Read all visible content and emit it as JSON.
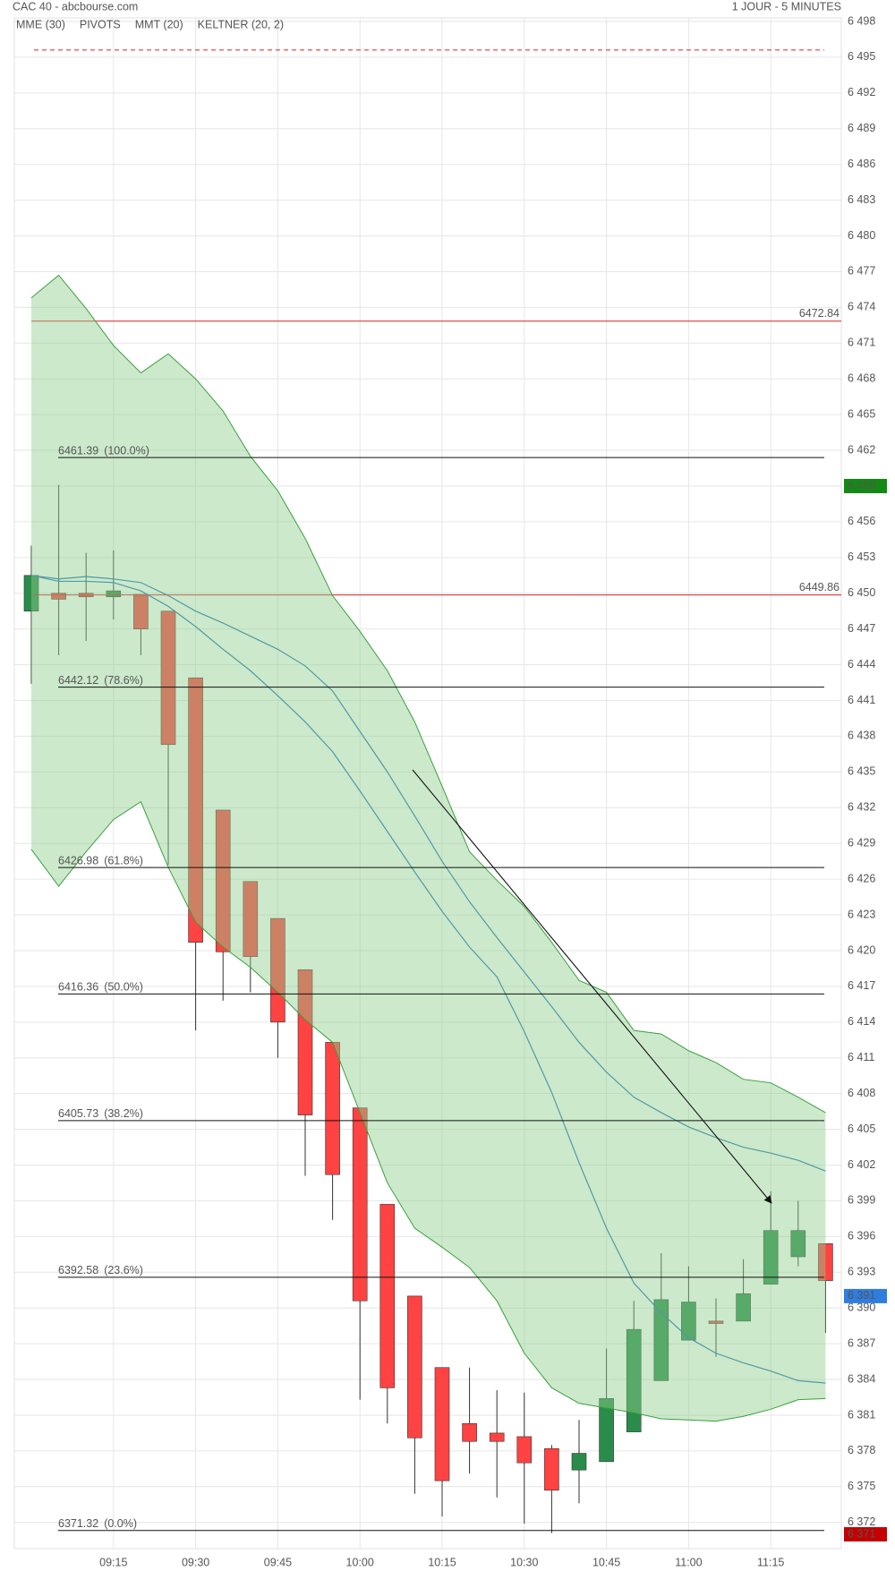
{
  "chart_data": {
    "type": "candlestick",
    "title": "CAC 40 - abcbourse.com",
    "subtitle": "1 JOUR - 5 MINUTES",
    "categories": [
      null,
      null,
      null,
      "09:15",
      null,
      null,
      "09:30",
      null,
      null,
      "09:45",
      null,
      null,
      "10:00",
      null,
      null,
      "10:15",
      null,
      null,
      "10:30",
      null,
      null,
      "10:45",
      null,
      null,
      "11:00",
      null,
      null,
      "11:15",
      null,
      null
    ],
    "open": [
      6448.5,
      6450.0,
      6450.0,
      6449.7,
      6449.9,
      6448.5,
      6442.9,
      6431.8,
      6425.8,
      6422.7,
      6418.4,
      6412.3,
      6406.8,
      6398.7,
      6391.0,
      6385.0,
      6380.3,
      6379.5,
      6379.2,
      6378.2,
      6376.4,
      6377.1,
      6379.6,
      6383.9,
      6387.3,
      6388.9,
      6388.9,
      6392.0,
      6394.3,
      6395.4
    ],
    "high": [
      6454.0,
      6459.1,
      6453.4,
      6453.6,
      6449.9,
      6448.5,
      6442.9,
      6431.8,
      6425.8,
      6422.7,
      6418.4,
      6412.3,
      6406.8,
      6398.7,
      6391.0,
      6385.0,
      6385.0,
      6383.1,
      6382.9,
      6378.5,
      6380.6,
      6386.6,
      6390.6,
      6394.6,
      6393.5,
      6390.8,
      6394.1,
      6399.8,
      6399.0,
      6395.4
    ],
    "low": [
      6442.4,
      6444.8,
      6446.0,
      6447.8,
      6444.8,
      6427.2,
      6413.3,
      6415.8,
      6416.5,
      6411.0,
      6401.1,
      6397.4,
      6382.3,
      6380.3,
      6374.4,
      6372.5,
      6376.1,
      6374.1,
      6371.9,
      6371.1,
      6373.6,
      6377.1,
      6379.6,
      6383.9,
      6387.3,
      6385.9,
      6388.9,
      6392.0,
      6393.5,
      6387.9
    ],
    "close": [
      6451.5,
      6449.5,
      6449.7,
      6450.2,
      6447.0,
      6437.3,
      6420.7,
      6419.9,
      6419.5,
      6414.0,
      6406.2,
      6401.2,
      6390.6,
      6383.3,
      6379.1,
      6375.5,
      6378.8,
      6378.8,
      6377.0,
      6374.7,
      6377.8,
      6382.4,
      6388.2,
      6390.7,
      6390.5,
      6388.7,
      6391.2,
      6396.5,
      6396.5,
      6392.3
    ],
    "up_color": "#2a8c4a",
    "down_color": "#ff4242",
    "ylim": [
      6369.8,
      6498.3
    ],
    "yticks": [
      {
        "value": 6372,
        "label": "6 372"
      },
      {
        "value": 6375,
        "label": "6 375"
      },
      {
        "value": 6378,
        "label": "6 378"
      },
      {
        "value": 6381,
        "label": "6 381"
      },
      {
        "value": 6384,
        "label": "6 384"
      },
      {
        "value": 6387,
        "label": "6 387"
      },
      {
        "value": 6390,
        "label": "6 390"
      },
      {
        "value": 6393,
        "label": "6 393"
      },
      {
        "value": 6396,
        "label": "6 396"
      },
      {
        "value": 6399,
        "label": "6 399"
      },
      {
        "value": 6402,
        "label": "6 402"
      },
      {
        "value": 6405,
        "label": "6 405"
      },
      {
        "value": 6408,
        "label": "6 408"
      },
      {
        "value": 6411,
        "label": "6 411"
      },
      {
        "value": 6414,
        "label": "6 414"
      },
      {
        "value": 6417,
        "label": "6 417"
      },
      {
        "value": 6420,
        "label": "6 420"
      },
      {
        "value": 6423,
        "label": "6 423"
      },
      {
        "value": 6426,
        "label": "6 426"
      },
      {
        "value": 6429,
        "label": "6 429"
      },
      {
        "value": 6432,
        "label": "6 432"
      },
      {
        "value": 6435,
        "label": "6 435"
      },
      {
        "value": 6438,
        "label": "6 438"
      },
      {
        "value": 6441,
        "label": "6 441"
      },
      {
        "value": 6444,
        "label": "6 444"
      },
      {
        "value": 6447,
        "label": "6 447"
      },
      {
        "value": 6450,
        "label": "6 450"
      },
      {
        "value": 6453,
        "label": "6 453"
      },
      {
        "value": 6456,
        "label": "6 456"
      },
      {
        "value": 6459,
        "label": "6 459"
      },
      {
        "value": 6462,
        "label": "6 462"
      },
      {
        "value": 6465,
        "label": "6 465"
      },
      {
        "value": 6468,
        "label": "6 468"
      },
      {
        "value": 6471,
        "label": "6 471"
      },
      {
        "value": 6474,
        "label": "6 474"
      },
      {
        "value": 6477,
        "label": "6 477"
      },
      {
        "value": 6480,
        "label": "6 480"
      },
      {
        "value": 6483,
        "label": "6 483"
      },
      {
        "value": 6486,
        "label": "6 486"
      },
      {
        "value": 6489,
        "label": "6 489"
      },
      {
        "value": 6492,
        "label": "6 492"
      },
      {
        "value": 6495,
        "label": "6 495"
      },
      {
        "value": 6498,
        "label": "6 498"
      }
    ],
    "grid": true,
    "series": [
      {
        "name": "MME (30)",
        "color": "#1f6fb5",
        "values": [
          6451.5,
          6451.2,
          6451.4,
          6451.2,
          6450.9,
          6449.8,
          6448.5,
          6447.5,
          6446.4,
          6445.3,
          6443.9,
          6441.8,
          6438.4,
          6435.0,
          6431.3,
          6427.5,
          6424.1,
          6421.1,
          6418.2,
          6415.3,
          6412.3,
          6409.8,
          6407.7,
          6406.4,
          6405.2,
          6404.3,
          6403.5,
          6403.0,
          6402.4,
          6401.5
        ]
      },
      {
        "name": "PIVOTS",
        "color": "#666666",
        "line_color": "#e02020",
        "levels": [
          6472.84,
          6449.86
        ],
        "dashed_level": 6495.6
      },
      {
        "name": "MMT (20)",
        "color": "#1f6fb5",
        "values": [
          6451.5,
          6451.0,
          6451.0,
          6450.9,
          6450.2,
          6448.9,
          6447.2,
          6445.3,
          6443.5,
          6441.4,
          6439.2,
          6436.7,
          6433.4,
          6430.0,
          6426.6,
          6423.3,
          6420.3,
          6417.8,
          6413.2,
          6408.1,
          6402.2,
          6396.7,
          6392.1,
          6389.6,
          6387.5,
          6386.2,
          6385.4,
          6384.7,
          6383.9,
          6383.7
        ]
      },
      {
        "name": "KELTNER (20, 2)",
        "color": "#3aa03a",
        "fill": "#8fcf8f",
        "upper": [
          6474.8,
          6476.7,
          6473.9,
          6470.8,
          6468.5,
          6470.1,
          6468.0,
          6465.3,
          6461.5,
          6458.6,
          6454.6,
          6449.8,
          6446.8,
          6443.5,
          6439.2,
          6433.8,
          6428.3,
          6425.9,
          6423.7,
          6420.7,
          6417.5,
          6416.5,
          6413.3,
          6413.0,
          6411.6,
          6410.6,
          6409.2,
          6408.9,
          6407.7,
          6406.4
        ],
        "lower": [
          6428.5,
          6425.4,
          6428.3,
          6431.0,
          6432.5,
          6427.0,
          6422.4,
          6420.3,
          6418.6,
          6416.5,
          6414.2,
          6412.3,
          6406.4,
          6400.5,
          6396.7,
          6395.1,
          6393.4,
          6390.6,
          6386.2,
          6383.3,
          6382.0,
          6381.6,
          6381.2,
          6380.7,
          6380.6,
          6380.5,
          6380.9,
          6381.5,
          6382.3,
          6382.4
        ]
      }
    ],
    "fibonacci": [
      {
        "price": 6461.39,
        "percent": {
          "value": 100,
          "label": "(100.0%)"
        }
      },
      {
        "price": 6442.12,
        "percent": {
          "value": 78.6,
          "label": "(78.6%)"
        }
      },
      {
        "price": 6426.98,
        "percent": {
          "value": 61.8,
          "label": "(61.8%)"
        }
      },
      {
        "price": 6416.36,
        "percent": {
          "value": 50,
          "label": "(50.0%)"
        }
      },
      {
        "price": 6405.73,
        "percent": {
          "value": 38.2,
          "label": "(38.2%)"
        }
      },
      {
        "price": 6392.58,
        "percent": {
          "value": 23.6,
          "label": "(23.6%)"
        }
      },
      {
        "price": 6371.32,
        "percent": {
          "value": 0,
          "label": "(0.0%)"
        }
      }
    ],
    "price_markers": [
      {
        "value": 6459,
        "label": "6 459",
        "color": "#138a13"
      },
      {
        "value": 6391,
        "label": "6 391",
        "color": "#2e7de0"
      },
      {
        "value": 6371,
        "label": "6 371",
        "color": "#c40000"
      }
    ]
  }
}
